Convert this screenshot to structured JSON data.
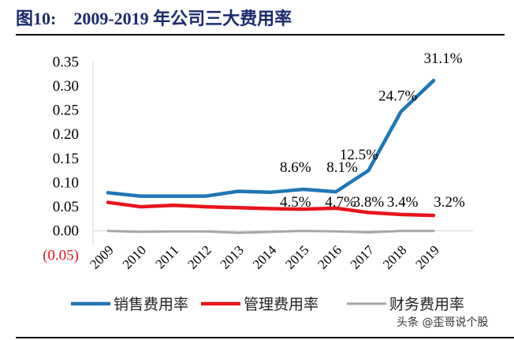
{
  "figure": {
    "title": "图10:    2009-2019 年公司三大费用率",
    "watermark": "头条 @歪哥说个股"
  },
  "chart_data": {
    "type": "line",
    "title": "2009-2019 年公司三大费用率",
    "xlabel": "",
    "ylabel": "",
    "categories": [
      "2009",
      "2010",
      "2011",
      "2012",
      "2013",
      "2014",
      "2015",
      "2016",
      "2017",
      "2018",
      "2019"
    ],
    "ylim": [
      -0.05,
      0.35
    ],
    "yticks": [
      "0.35",
      "0.30",
      "0.25",
      "0.20",
      "0.15",
      "0.10",
      "0.05",
      "0.00",
      "(0.05)"
    ],
    "ytick_values": [
      0.35,
      0.3,
      0.25,
      0.2,
      0.15,
      0.1,
      0.05,
      0.0,
      -0.05
    ],
    "grid": false,
    "legend_position": "bottom",
    "series": [
      {
        "name": "销售费用率",
        "color": "#1f77b4",
        "values": [
          0.079,
          0.072,
          0.072,
          0.072,
          0.082,
          0.08,
          0.086,
          0.081,
          0.125,
          0.247,
          0.311
        ],
        "labels": [
          null,
          null,
          null,
          null,
          null,
          null,
          "8.6%",
          "8.1%",
          "12.5%",
          "24.7%",
          "31.1%"
        ]
      },
      {
        "name": "管理费用率",
        "color": "#e8131b",
        "values": [
          0.059,
          0.05,
          0.053,
          0.05,
          0.048,
          0.046,
          0.045,
          0.047,
          0.038,
          0.034,
          0.032
        ],
        "labels": [
          null,
          null,
          null,
          null,
          null,
          null,
          "4.5%",
          "4.7%",
          "3.8%",
          "3.4%",
          "3.2%"
        ]
      },
      {
        "name": "财务费用率",
        "color": "#a6a6a6",
        "values": [
          0.0,
          -0.002,
          -0.001,
          -0.001,
          -0.004,
          -0.002,
          0.0,
          -0.001,
          -0.003,
          0.0,
          0.0
        ],
        "labels": []
      }
    ]
  }
}
